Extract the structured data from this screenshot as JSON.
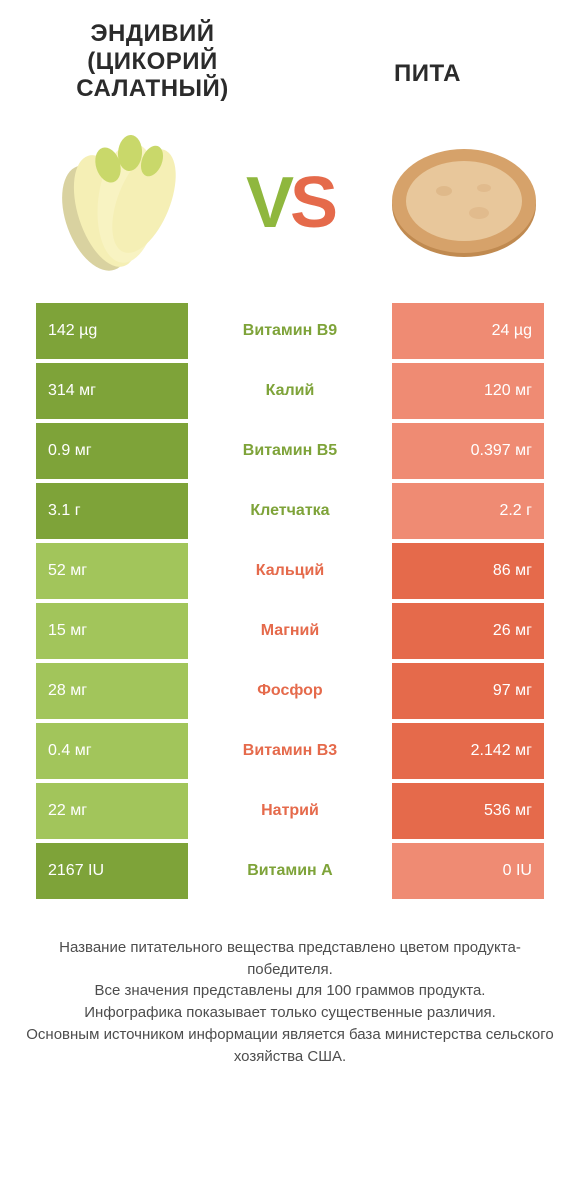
{
  "header": {
    "left_title_line1": "ЭНДИВИЙ",
    "left_title_line2": "(ЦИКОРИЙ",
    "left_title_line3": "САЛАТНЫЙ)",
    "right_title": "ПИТА"
  },
  "vs": {
    "v": "V",
    "s": "S"
  },
  "colors": {
    "green_dark": "#7ea339",
    "green_light": "#a2c55b",
    "orange_dark": "#e56a4b",
    "orange_light": "#ef8b73",
    "text_footer": "#4d4d4d",
    "text_header": "#2b2b2b",
    "background": "#ffffff"
  },
  "rows": [
    {
      "left": "142 µg",
      "label": "Витамин B9",
      "right": "24 µg",
      "winner": "left"
    },
    {
      "left": "314 мг",
      "label": "Калий",
      "right": "120 мг",
      "winner": "left"
    },
    {
      "left": "0.9 мг",
      "label": "Витамин B5",
      "right": "0.397 мг",
      "winner": "left"
    },
    {
      "left": "3.1 г",
      "label": "Клетчатка",
      "right": "2.2 г",
      "winner": "left"
    },
    {
      "left": "52 мг",
      "label": "Кальций",
      "right": "86 мг",
      "winner": "right"
    },
    {
      "left": "15 мг",
      "label": "Магний",
      "right": "26 мг",
      "winner": "right"
    },
    {
      "left": "28 мг",
      "label": "Фосфор",
      "right": "97 мг",
      "winner": "right"
    },
    {
      "left": "0.4 мг",
      "label": "Витамин B3",
      "right": "2.142 мг",
      "winner": "right"
    },
    {
      "left": "22 мг",
      "label": "Натрий",
      "right": "536 мг",
      "winner": "right"
    },
    {
      "left": "2167 IU",
      "label": "Витамин A",
      "right": "0 IU",
      "winner": "left"
    }
  ],
  "footnote": {
    "l1": "Название питательного вещества представлено цветом продукта-победителя.",
    "l2": "Все значения представлены для 100 граммов продукта.",
    "l3": "Инфографика показывает только существенные различия.",
    "l4": "Основным источником информации является база министерства сельского хозяйства США."
  },
  "illustrations": {
    "endive": {
      "leaf_body": "#f5efb5",
      "leaf_tip": "#c9d86a",
      "shadow": "#d9d2a0"
    },
    "pita": {
      "outer": "#d6a26a",
      "inner": "#e8c79b",
      "rim": "#c08a50"
    }
  }
}
